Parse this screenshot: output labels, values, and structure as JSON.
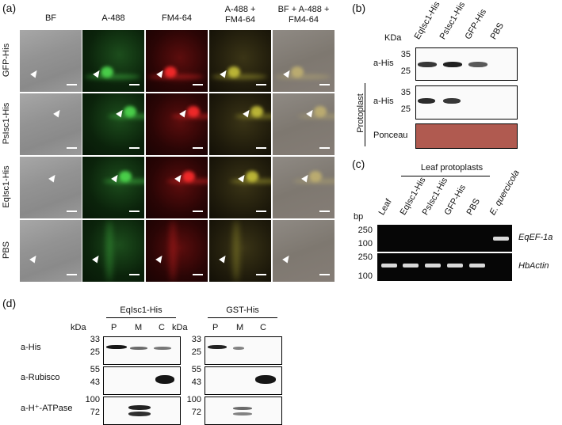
{
  "panel_a": {
    "label": "(a)",
    "columns": [
      "BF",
      "A-488",
      "FM4-64",
      "A-488 +\nFM4-64",
      "BF + A-488 +\nFM4-64"
    ],
    "columns_lines": [
      [
        "BF"
      ],
      [
        "A-488"
      ],
      [
        "FM4-64"
      ],
      [
        "A-488 +",
        "FM4-64"
      ],
      [
        "BF + A-488 +",
        "FM4-64"
      ]
    ],
    "rows": [
      "GFP-His",
      "PsIsc1-His",
      "EqIsc1-His",
      "PBS"
    ]
  },
  "panel_b": {
    "label": "(b)",
    "lanes": [
      "EqIsc1-His",
      "PsIsc1-His",
      "GFP-His",
      "PBS"
    ],
    "kda_label": "KDa",
    "blot1": {
      "antibody": "a-His",
      "markers": [
        "35",
        "25"
      ],
      "band_intensity": [
        0.85,
        0.95,
        0.7,
        0
      ]
    },
    "blot2": {
      "antibody": "a-His",
      "markers": [
        "35",
        "25"
      ],
      "band_intensity": [
        0.9,
        0.85,
        0,
        0
      ]
    },
    "blot3": {
      "antibody": "Ponceau"
    },
    "side_label": "Protoplast"
  },
  "panel_c": {
    "label": "(c)",
    "group_label": "Leaf protoplasts",
    "bp_label": "bp",
    "lanes": [
      "Leaf",
      "EqIsc1-His",
      "PsIsc1-His",
      "GFP-His",
      "PBS",
      "E. quercicola"
    ],
    "gel1": {
      "gene": "EqEF-1a",
      "markers": [
        "250",
        "100"
      ],
      "band_present": [
        false,
        false,
        false,
        false,
        false,
        true
      ]
    },
    "gel2": {
      "gene": "HbActin",
      "markers": [
        "250",
        "100"
      ],
      "band_present": [
        true,
        true,
        true,
        true,
        true,
        false
      ]
    }
  },
  "panel_d": {
    "label": "(d)",
    "groups": [
      {
        "title": "EqIsc1-His",
        "lanes": [
          "P",
          "M",
          "C"
        ]
      },
      {
        "title": "GST-His",
        "lanes": [
          "P",
          "M",
          "C"
        ]
      }
    ],
    "kda_label": "kDa",
    "rows": [
      {
        "antibody": "a-His",
        "markers": [
          "33",
          "25"
        ]
      },
      {
        "antibody": "a-Rubisco",
        "markers": [
          "55",
          "43"
        ]
      },
      {
        "antibody": "a-H⁺-ATPase",
        "markers": [
          "100",
          "72"
        ]
      }
    ]
  }
}
